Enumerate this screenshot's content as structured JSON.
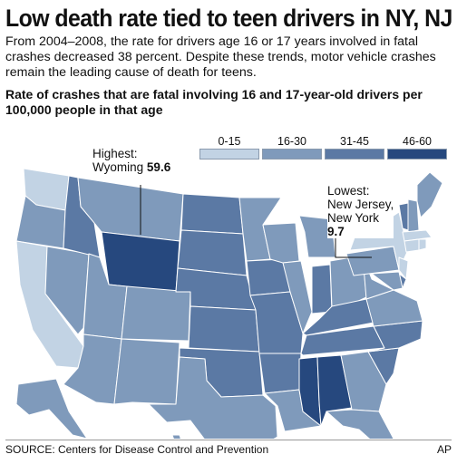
{
  "headline": "Low death rate tied to teen drivers in NY, NJ",
  "intro": "From 2004–2008, the rate for drivers age 16 or 17 years involved in fatal crashes decreased 38 percent. Despite these trends, motor vehicle crashes remain the leading cause of death for teens.",
  "subtitle": "Rate of crashes that are fatal involving 16 and 17-year-old drivers per 100,000 people in that age",
  "legend": [
    {
      "label": "0-15",
      "color": "#c2d3e4"
    },
    {
      "label": "16-30",
      "color": "#7f9abb"
    },
    {
      "label": "31-45",
      "color": "#5b79a4"
    },
    {
      "label": "46-60",
      "color": "#26487e"
    }
  ],
  "callouts": {
    "highest": {
      "title": "Highest:",
      "state": "Wyoming",
      "value": "59.6"
    },
    "lowest": {
      "title": "Lowest:",
      "line1": "New Jersey,",
      "line2": "New York",
      "value": "9.7"
    }
  },
  "state_classes": {
    "Washington": "0-15",
    "Oregon": "16-30",
    "California": "0-15",
    "Idaho": "31-45",
    "Nevada": "16-30",
    "Montana": "16-30",
    "Wyoming": "46-60",
    "Utah": "16-30",
    "Arizona": "16-30",
    "Colorado": "16-30",
    "New Mexico": "16-30",
    "North Dakota": "31-45",
    "South Dakota": "31-45",
    "Nebraska": "31-45",
    "Kansas": "31-45",
    "Oklahoma": "31-45",
    "Texas": "16-30",
    "Minnesota": "16-30",
    "Iowa": "31-45",
    "Missouri": "31-45",
    "Arkansas": "31-45",
    "Louisiana": "16-30",
    "Wisconsin": "16-30",
    "Illinois": "16-30",
    "Michigan": "16-30",
    "Indiana": "31-45",
    "Ohio": "16-30",
    "Kentucky": "31-45",
    "Tennessee": "31-45",
    "Mississippi": "46-60",
    "Alabama": "46-60",
    "Georgia": "16-30",
    "Florida": "16-30",
    "South Carolina": "31-45",
    "North Carolina": "31-45",
    "Virginia": "16-30",
    "West Virginia": "16-30",
    "Pennsylvania": "16-30",
    "New York": "0-15",
    "Maine": "16-30",
    "Vermont": "31-45",
    "New Hampshire": "16-30",
    "Massachusetts": "0-15",
    "Connecticut": "0-15",
    "Rhode Island": "0-15",
    "New Jersey": "0-15",
    "Delaware": "31-45",
    "Maryland": "16-30",
    "Alaska": "16-30",
    "Hawaii": "16-30"
  },
  "source": "SOURCE: Centers for Disease Control and Prevention",
  "credit": "AP"
}
